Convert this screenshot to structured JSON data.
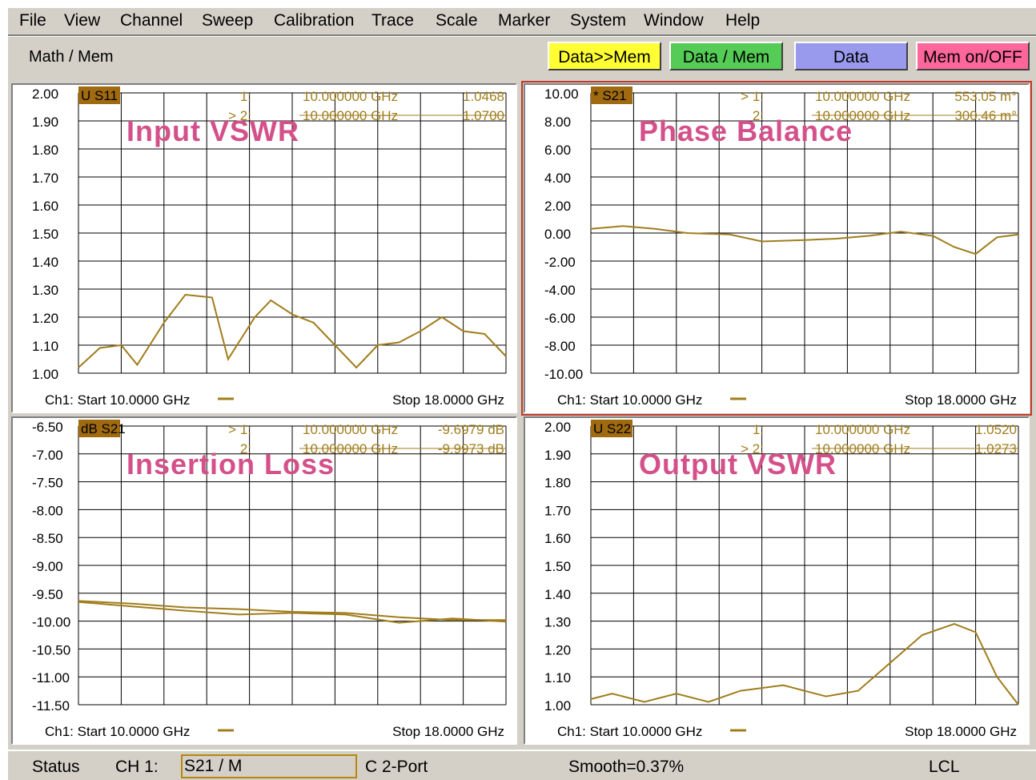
{
  "menu": [
    "File",
    "View",
    "Channel",
    "Sweep",
    "Calibration",
    "Trace",
    "Scale",
    "Marker",
    "System",
    "Window",
    "Help"
  ],
  "toolbar": {
    "title": "Math / Mem",
    "buttons": [
      {
        "label": "Data>>Mem",
        "color": "#ffff33"
      },
      {
        "label": "Data / Mem",
        "color": "#55cc55"
      },
      {
        "label": "Data",
        "color": "#9999ee"
      },
      {
        "label": "Mem on/OFF",
        "color": "#ff6699"
      }
    ]
  },
  "colors": {
    "trace": "#a07d1c",
    "grid": "#000000",
    "annotation": "#d4508a",
    "badge": "#a06a10",
    "active_border": "#c0392b"
  },
  "panels": [
    {
      "id": "p1",
      "annotation": "Input VSWR",
      "badge": "U S11",
      "yticks": [
        "2.00",
        "1.90",
        "1.80",
        "1.70",
        "1.60",
        "1.50",
        "1.40",
        "1.30",
        "1.20",
        "1.10",
        "1.00"
      ],
      "markers": [
        {
          "id": "1:",
          "freq": "10.000000 GHz",
          "value": "1.0468"
        },
        {
          "id": "> 2:",
          "freq": "10.000000 GHz",
          "value": "1.0700"
        }
      ],
      "start": "Ch1: Start  10.0000 GHz",
      "stop": "Stop  18.0000 GHz",
      "chart_data": {
        "type": "line",
        "title": "Input VSWR",
        "ylim": [
          1.0,
          2.0
        ],
        "xlim": [
          10.0,
          18.0
        ],
        "series": [
          {
            "name": "S11",
            "x": [
              10.0,
              10.4,
              10.8,
              11.1,
              11.6,
              12.0,
              12.5,
              12.8,
              13.3,
              13.6,
              14.0,
              14.4,
              14.8,
              15.2,
              15.6,
              16.0,
              16.4,
              16.8,
              17.2,
              17.6,
              18.0
            ],
            "y": [
              1.02,
              1.09,
              1.1,
              1.03,
              1.18,
              1.28,
              1.27,
              1.05,
              1.2,
              1.26,
              1.21,
              1.18,
              1.1,
              1.02,
              1.1,
              1.11,
              1.15,
              1.2,
              1.15,
              1.14,
              1.06
            ]
          }
        ]
      }
    },
    {
      "id": "p2",
      "annotation": "Phase Balance",
      "badge": "* S21",
      "yticks": [
        "10.00",
        "8.00",
        "6.00",
        "4.00",
        "2.00",
        "0.00",
        "-2.00",
        "-4.00",
        "-6.00",
        "-8.00",
        "-10.00"
      ],
      "markers": [
        {
          "id": "> 1:",
          "freq": "10.000000 GHz",
          "value": "553.05 m°"
        },
        {
          "id": "2:",
          "freq": "10.000000 GHz",
          "value": "300.46 m°"
        }
      ],
      "start": "Ch1: Start  10.0000 GHz",
      "stop": "Stop  18.0000 GHz",
      "chart_data": {
        "type": "line",
        "title": "Phase Balance",
        "ylim": [
          -10.0,
          10.0
        ],
        "xlim": [
          10.0,
          18.0
        ],
        "series": [
          {
            "name": "S21",
            "x": [
              10.0,
              10.6,
              11.2,
              11.8,
              12.6,
              13.2,
              14.0,
              14.6,
              15.2,
              15.8,
              16.4,
              16.8,
              17.2,
              17.6,
              18.0
            ],
            "y": [
              0.3,
              0.5,
              0.3,
              0.0,
              -0.1,
              -0.6,
              -0.5,
              -0.4,
              -0.2,
              0.1,
              -0.2,
              -1.0,
              -1.5,
              -0.3,
              -0.1
            ]
          }
        ]
      }
    },
    {
      "id": "p3",
      "annotation": "Insertion Loss",
      "badge": "dB S21",
      "yticks": [
        "-6.50",
        "-7.00",
        "-7.50",
        "-8.00",
        "-8.50",
        "-9.00",
        "-9.50",
        "-10.00",
        "-10.50",
        "-11.00",
        "-11.50"
      ],
      "markers": [
        {
          "id": "> 1:",
          "freq": "10.000000 GHz",
          "value": "-9.6979 dB"
        },
        {
          "id": "2:",
          "freq": "10.000000 GHz",
          "value": "-9.9973 dB"
        }
      ],
      "start": "Ch1: Start  10.0000 GHz",
      "stop": "Stop  18.0000 GHz",
      "chart_data": {
        "type": "line",
        "title": "Insertion Loss",
        "ylim": [
          -11.6,
          -6.5
        ],
        "xlim": [
          10.0,
          18.0
        ],
        "series": [
          {
            "name": "S21",
            "x": [
              10.0,
              11.0,
              12.0,
              13.0,
              14.0,
              15.0,
              16.0,
              17.0,
              18.0
            ],
            "y": [
              -9.7,
              -9.75,
              -9.82,
              -9.85,
              -9.9,
              -9.92,
              -10.0,
              -10.05,
              -10.05
            ]
          },
          {
            "name": "Mem",
            "x": [
              10.0,
              11.0,
              12.0,
              13.0,
              14.0,
              15.0,
              16.0,
              17.0,
              18.0
            ],
            "y": [
              -9.72,
              -9.8,
              -9.88,
              -9.95,
              -9.92,
              -9.95,
              -10.1,
              -10.02,
              -10.08
            ]
          }
        ]
      }
    },
    {
      "id": "p4",
      "annotation": "Output VSWR",
      "badge": "U S22",
      "yticks": [
        "2.00",
        "1.90",
        "1.80",
        "1.70",
        "1.60",
        "1.50",
        "1.40",
        "1.30",
        "1.20",
        "1.10",
        "1.00"
      ],
      "markers": [
        {
          "id": "1:",
          "freq": "10.000000 GHz",
          "value": "1.0520"
        },
        {
          "id": "> 2:",
          "freq": "10.000000 GHz",
          "value": "1.0273"
        }
      ],
      "start": "Ch1: Start  10.0000 GHz",
      "stop": "Stop  18.0000 GHz",
      "chart_data": {
        "type": "line",
        "title": "Output VSWR",
        "ylim": [
          1.0,
          2.0
        ],
        "xlim": [
          10.0,
          18.0
        ],
        "series": [
          {
            "name": "S22",
            "x": [
              10.0,
              10.4,
              11.0,
              11.6,
              12.2,
              12.8,
              13.6,
              14.4,
              15.0,
              15.6,
              16.2,
              16.8,
              17.2,
              17.6,
              18.0
            ],
            "y": [
              1.02,
              1.04,
              1.01,
              1.04,
              1.01,
              1.05,
              1.07,
              1.03,
              1.05,
              1.15,
              1.25,
              1.29,
              1.26,
              1.1,
              1.0
            ]
          }
        ]
      }
    }
  ],
  "status": {
    "label": "Status",
    "channel": "CH 1:",
    "field": "S21 / M",
    "port": "C  2-Port",
    "smooth": "Smooth=0.37%",
    "mode": "LCL"
  }
}
